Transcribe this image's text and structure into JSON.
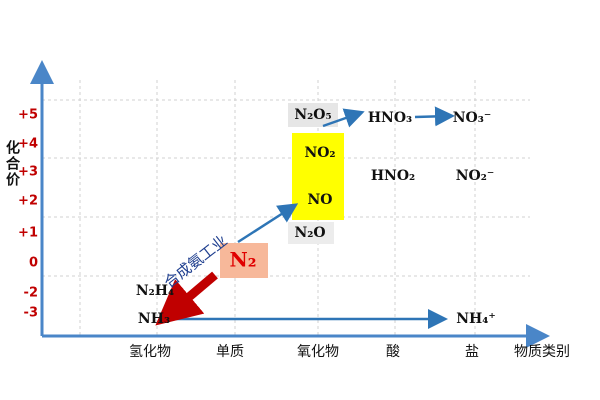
{
  "y_axis": {
    "label": "化合价",
    "ticks": [
      "+5",
      "+4",
      "+3",
      "+2",
      "+1",
      "0",
      "-2",
      "-3"
    ]
  },
  "x_axis": {
    "label": "物质类别",
    "categories": [
      "氢化物",
      "单质",
      "氧化物",
      "酸",
      "盐"
    ]
  },
  "nodes": [
    "N₂O₅",
    "HNO₃",
    "NO₃⁻",
    "NO₂",
    "NO",
    "HNO₂",
    "NO₂⁻",
    "N₂O",
    "N₂",
    "N₂H₄",
    "NH₃",
    "NH₄⁺"
  ],
  "arrow_label": "合成氨工业"
}
